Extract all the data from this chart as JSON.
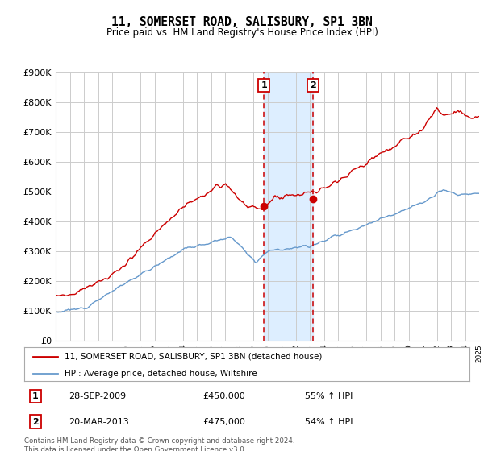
{
  "title": "11, SOMERSET ROAD, SALISBURY, SP1 3BN",
  "subtitle": "Price paid vs. HM Land Registry's House Price Index (HPI)",
  "legend_line1": "11, SOMERSET ROAD, SALISBURY, SP1 3BN (detached house)",
  "legend_line2": "HPI: Average price, detached house, Wiltshire",
  "purchase1_date_label": "28-SEP-2009",
  "purchase1_price": 450000,
  "purchase1_price_label": "£450,000",
  "purchase1_hpi": "55% ↑ HPI",
  "purchase2_date_label": "20-MAR-2013",
  "purchase2_price": 475000,
  "purchase2_price_label": "£475,000",
  "purchase2_hpi": "54% ↑ HPI",
  "footnote": "Contains HM Land Registry data © Crown copyright and database right 2024.\nThis data is licensed under the Open Government Licence v3.0.",
  "red_line_color": "#cc0000",
  "blue_line_color": "#6699cc",
  "bg_color": "#ffffff",
  "grid_color": "#cccccc",
  "shading_color": "#ddeeff",
  "dashed_line_color": "#cc0000",
  "marker_color": "#cc0000",
  "ylim": [
    0,
    900000
  ],
  "ytick_values": [
    0,
    100000,
    200000,
    300000,
    400000,
    500000,
    600000,
    700000,
    800000,
    900000
  ],
  "ytick_labels": [
    "£0",
    "£100K",
    "£200K",
    "£300K",
    "£400K",
    "£500K",
    "£600K",
    "£700K",
    "£800K",
    "£900K"
  ],
  "purchase1_year": 2009.75,
  "purchase2_year": 2013.22,
  "xlim_start": 1995,
  "xlim_end": 2025
}
